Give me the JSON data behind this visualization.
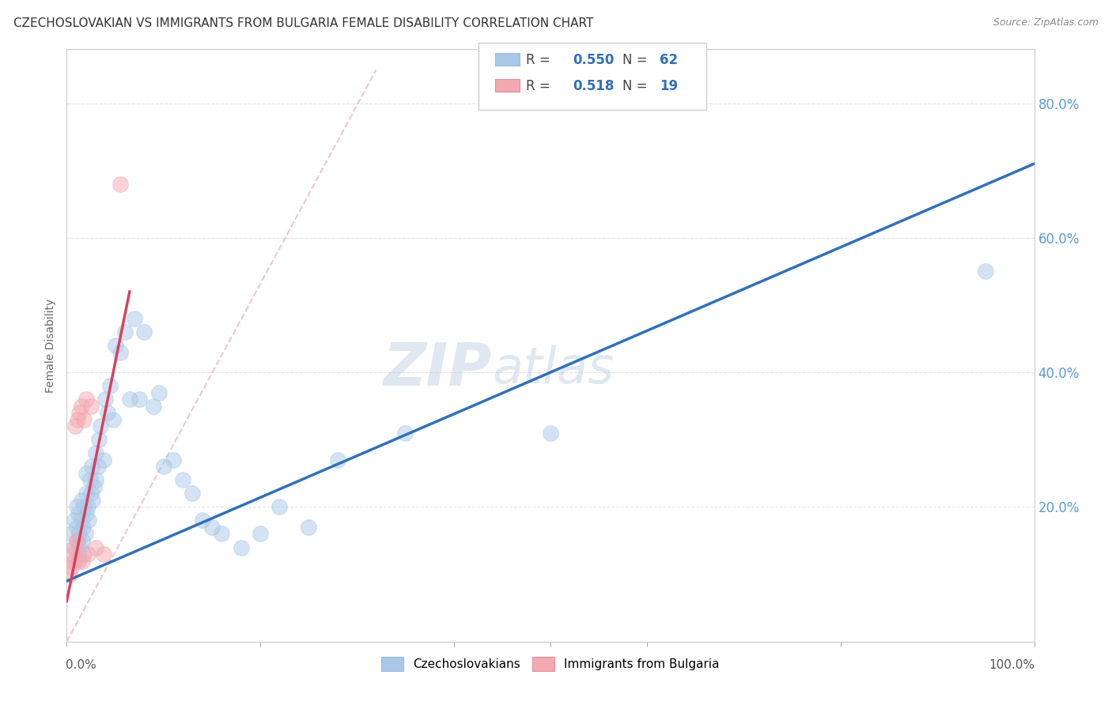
{
  "title": "CZECHOSLOVAKIAN VS IMMIGRANTS FROM BULGARIA FEMALE DISABILITY CORRELATION CHART",
  "source": "Source: ZipAtlas.com",
  "ylabel": "Female Disability",
  "blue_color": "#a8c8e8",
  "pink_color": "#f4a8b0",
  "blue_line_color": "#3070b8",
  "pink_line_color": "#d84060",
  "diagonal_color": "#e0b0b8",
  "watermark_zip": "ZIP",
  "watermark_atlas": "atlas",
  "blue_scatter_x": [
    0.005,
    0.007,
    0.008,
    0.009,
    0.01,
    0.01,
    0.011,
    0.012,
    0.012,
    0.013,
    0.014,
    0.015,
    0.015,
    0.016,
    0.017,
    0.018,
    0.018,
    0.019,
    0.02,
    0.02,
    0.02,
    0.022,
    0.023,
    0.024,
    0.025,
    0.026,
    0.027,
    0.028,
    0.03,
    0.03,
    0.032,
    0.033,
    0.035,
    0.038,
    0.04,
    0.042,
    0.045,
    0.048,
    0.05,
    0.055,
    0.06,
    0.065,
    0.07,
    0.075,
    0.08,
    0.09,
    0.095,
    0.1,
    0.11,
    0.12,
    0.13,
    0.14,
    0.15,
    0.16,
    0.18,
    0.2,
    0.22,
    0.25,
    0.28,
    0.35,
    0.5,
    0.95
  ],
  "blue_scatter_y": [
    0.16,
    0.14,
    0.18,
    0.12,
    0.17,
    0.2,
    0.15,
    0.13,
    0.19,
    0.16,
    0.14,
    0.18,
    0.21,
    0.15,
    0.17,
    0.13,
    0.2,
    0.16,
    0.22,
    0.19,
    0.25,
    0.2,
    0.18,
    0.24,
    0.22,
    0.26,
    0.21,
    0.23,
    0.28,
    0.24,
    0.26,
    0.3,
    0.32,
    0.27,
    0.36,
    0.34,
    0.38,
    0.33,
    0.44,
    0.43,
    0.46,
    0.36,
    0.48,
    0.36,
    0.46,
    0.35,
    0.37,
    0.26,
    0.27,
    0.24,
    0.22,
    0.18,
    0.17,
    0.16,
    0.14,
    0.16,
    0.2,
    0.17,
    0.27,
    0.31,
    0.31,
    0.55
  ],
  "pink_scatter_x": [
    0.003,
    0.005,
    0.006,
    0.007,
    0.008,
    0.009,
    0.01,
    0.011,
    0.012,
    0.013,
    0.015,
    0.016,
    0.018,
    0.02,
    0.022,
    0.025,
    0.03,
    0.038,
    0.055
  ],
  "pink_scatter_y": [
    0.1,
    0.11,
    0.13,
    0.12,
    0.14,
    0.32,
    0.15,
    0.33,
    0.12,
    0.34,
    0.35,
    0.12,
    0.33,
    0.36,
    0.13,
    0.35,
    0.14,
    0.13,
    0.68
  ],
  "blue_line_x": [
    0.0,
    1.0
  ],
  "blue_line_y": [
    0.09,
    0.71
  ],
  "pink_line_x": [
    0.0,
    0.065
  ],
  "pink_line_y": [
    0.06,
    0.52
  ],
  "diag_line_x": [
    0.0,
    0.32
  ],
  "diag_line_y": [
    0.0,
    0.85
  ],
  "xlim": [
    0.0,
    1.0
  ],
  "ylim": [
    0.0,
    0.88
  ],
  "yticks": [
    0.0,
    0.2,
    0.4,
    0.6,
    0.8
  ],
  "ytick_labels": [
    "",
    "20.0%",
    "40.0%",
    "60.0%",
    "80.0%"
  ],
  "bg_color": "#ffffff",
  "grid_color": "#dddddd",
  "title_color": "#333333",
  "right_axis_label_color": "#5b9bd5",
  "title_fontsize": 11,
  "source_fontsize": 9,
  "legend_fontsize": 12,
  "legend_r1": "0.550",
  "legend_n1": "62",
  "legend_r2": "0.518",
  "legend_n2": "19"
}
